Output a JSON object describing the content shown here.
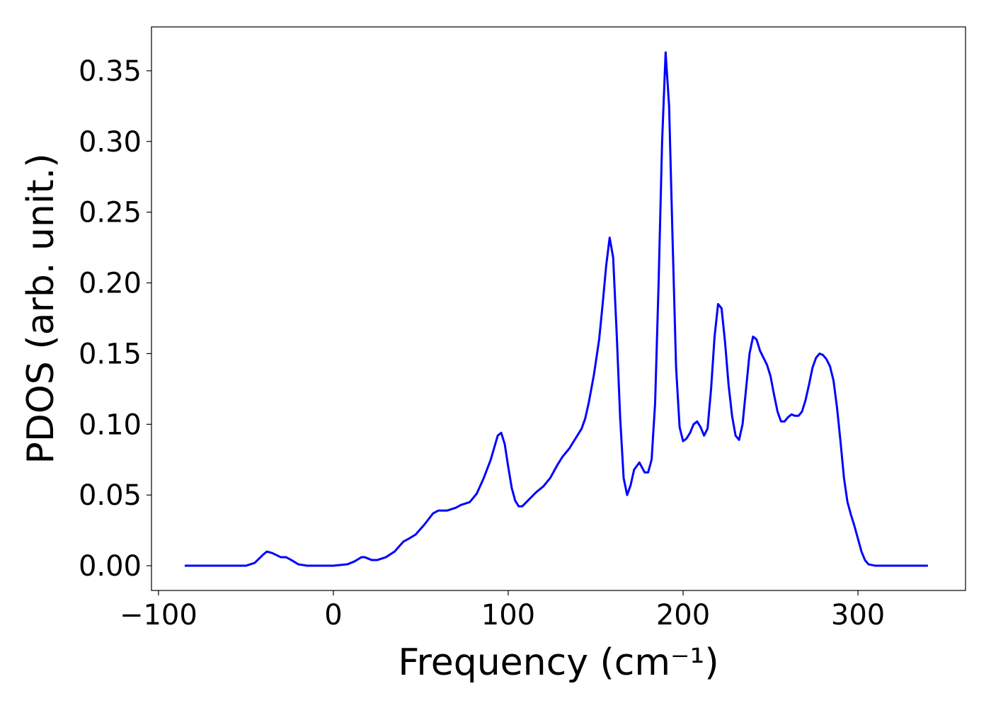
{
  "chart_data": {
    "type": "line",
    "xlabel": "Frequency (cm⁻¹)",
    "ylabel": "PDOS (arb. unit.)",
    "xlim": [
      -104,
      361.5
    ],
    "ylim": [
      -0.0175,
      0.381
    ],
    "xticks": [
      {
        "value": -100,
        "label": "−100"
      },
      0,
      100,
      200,
      300
    ],
    "yticks": [
      {
        "value": 0,
        "label": "0.00"
      },
      0.05,
      {
        "value": 0.1,
        "label": "0.10"
      },
      0.15,
      {
        "value": 0.2,
        "label": "0.20"
      },
      0.25,
      {
        "value": 0.3,
        "label": "0.30"
      },
      0.35
    ],
    "grid": false,
    "x": [
      -85,
      -50,
      -45,
      -40,
      -38,
      -35,
      -30,
      -27,
      -24,
      -20,
      -15,
      0,
      8,
      12,
      16,
      18,
      22,
      25,
      30,
      35,
      40,
      43,
      47,
      52,
      57,
      60,
      65,
      70,
      73,
      78,
      82,
      86,
      90,
      94,
      96,
      98,
      100,
      102,
      104,
      106,
      108,
      112,
      116,
      120,
      124,
      128,
      131,
      135,
      138,
      142,
      144,
      146,
      149,
      152,
      154,
      156,
      158,
      160,
      162,
      164,
      166,
      168,
      170,
      172,
      175,
      178,
      180,
      182,
      184,
      186,
      188,
      190,
      192,
      194,
      196,
      198,
      200,
      202,
      204,
      206,
      208,
      210,
      212,
      214,
      216,
      218,
      220,
      222,
      224,
      226,
      228,
      230,
      232,
      234,
      236,
      238,
      240,
      242,
      244,
      246,
      248,
      250,
      252,
      254,
      256,
      258,
      260,
      262,
      264,
      266,
      268,
      270,
      272,
      274,
      276,
      278,
      280,
      282,
      284,
      286,
      288,
      290,
      292,
      294,
      296,
      298,
      300,
      302,
      304,
      306,
      310,
      340
    ],
    "series": [
      {
        "name": "PDOS",
        "color": "#0000ff",
        "values": [
          0,
          0,
          0.002,
          0.008,
          0.01,
          0.009,
          0.006,
          0.006,
          0.004,
          0.001,
          0,
          0,
          0.001,
          0.003,
          0.006,
          0.006,
          0.004,
          0.004,
          0.006,
          0.01,
          0.017,
          0.019,
          0.022,
          0.029,
          0.037,
          0.039,
          0.039,
          0.041,
          0.043,
          0.045,
          0.051,
          0.062,
          0.075,
          0.092,
          0.094,
          0.086,
          0.07,
          0.055,
          0.046,
          0.042,
          0.042,
          0.047,
          0.052,
          0.056,
          0.062,
          0.071,
          0.077,
          0.083,
          0.089,
          0.097,
          0.104,
          0.115,
          0.135,
          0.16,
          0.185,
          0.212,
          0.232,
          0.218,
          0.165,
          0.105,
          0.062,
          0.05,
          0.057,
          0.068,
          0.073,
          0.066,
          0.066,
          0.075,
          0.115,
          0.2,
          0.3,
          0.363,
          0.325,
          0.23,
          0.14,
          0.098,
          0.088,
          0.09,
          0.094,
          0.1,
          0.102,
          0.098,
          0.092,
          0.097,
          0.125,
          0.162,
          0.185,
          0.182,
          0.158,
          0.128,
          0.106,
          0.092,
          0.089,
          0.1,
          0.125,
          0.15,
          0.162,
          0.16,
          0.152,
          0.147,
          0.142,
          0.134,
          0.121,
          0.109,
          0.102,
          0.102,
          0.105,
          0.107,
          0.106,
          0.106,
          0.109,
          0.117,
          0.128,
          0.14,
          0.147,
          0.15,
          0.149,
          0.146,
          0.141,
          0.131,
          0.112,
          0.088,
          0.062,
          0.045,
          0.036,
          0.028,
          0.019,
          0.01,
          0.004,
          0.001,
          0,
          0
        ]
      }
    ]
  }
}
